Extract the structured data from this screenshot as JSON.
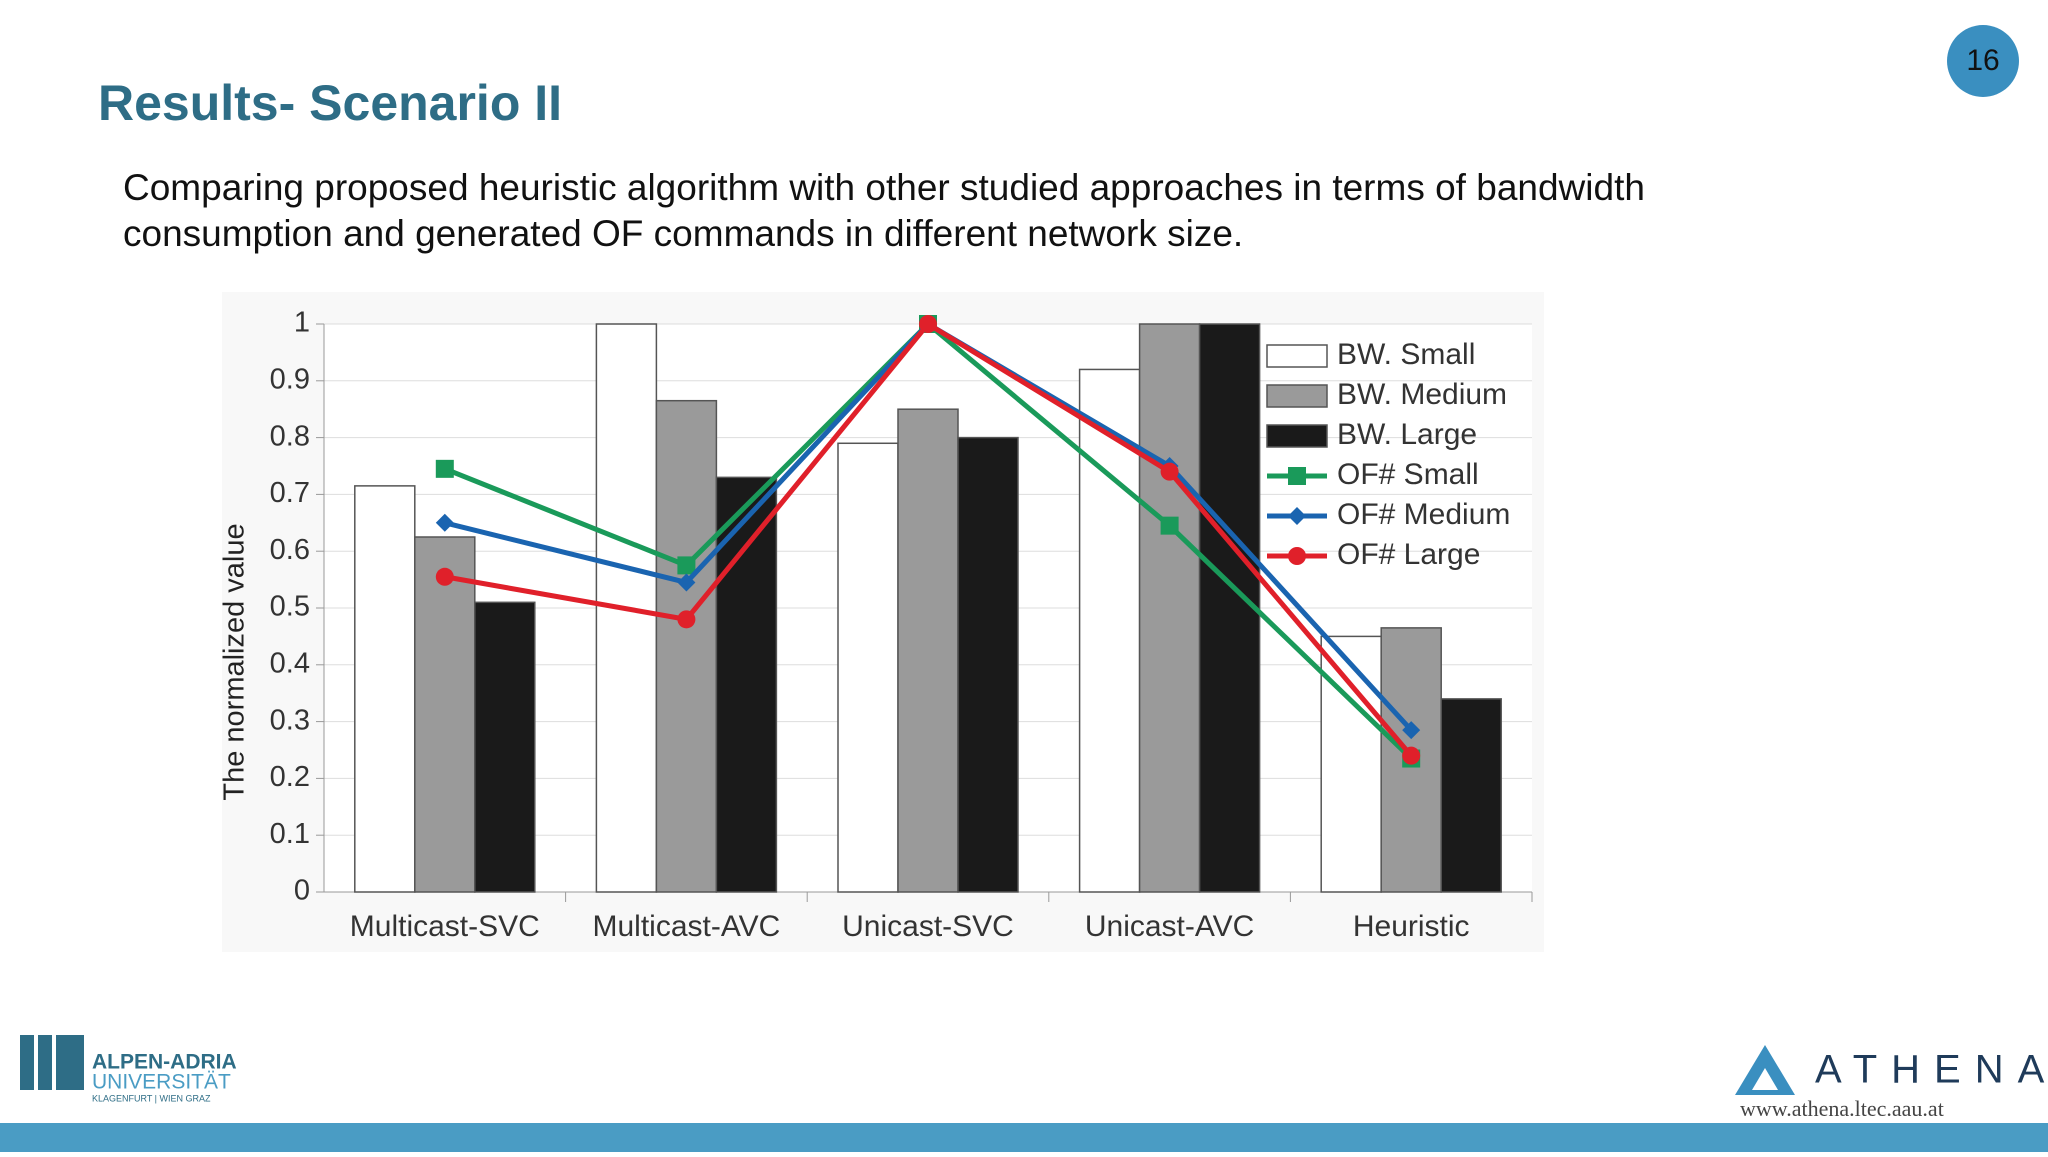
{
  "slide": {
    "title": "Results- Scenario II",
    "text": [
      "Comparing proposed heuristic algorithm with other studied approaches in terms of bandwidth",
      "consumption and generated OF commands in different network size."
    ],
    "page_number": 16,
    "logo_left": [
      "ALPEN-ADRIA",
      "UNIVERSITÄT",
      "KLAGENFURT | WIEN GRAZ"
    ],
    "logo_right": [
      "ATHENA",
      "www.athena.ltec.aau.at"
    ]
  },
  "chart_data": {
    "type": "bar",
    "y_label": "The normalized value",
    "categories": [
      "Multicast-SVC",
      "Multicast-AVC",
      "Unicast-SVC",
      "Unicast-AVC",
      "Heuristic"
    ],
    "series": [
      {
        "name": "BW. Small",
        "type": "bar",
        "color": "#ffffff",
        "values": [
          0.715,
          1.0,
          0.79,
          0.92,
          0.45
        ]
      },
      {
        "name": "BW. Medium",
        "type": "bar",
        "color": "#9a9a9a",
        "values": [
          0.625,
          0.865,
          0.85,
          1.0,
          0.465
        ]
      },
      {
        "name": "BW. Large",
        "type": "bar",
        "color": "#1a1a1a",
        "values": [
          0.51,
          0.73,
          0.8,
          1.0,
          0.34
        ]
      },
      {
        "name": "OF# Small",
        "type": "line",
        "marker": "square",
        "color": "#1a9a5a",
        "values": [
          0.745,
          0.575,
          1.0,
          0.645,
          0.235
        ]
      },
      {
        "name": "OF# Medium",
        "type": "line",
        "marker": "diamond",
        "color": "#1a64b0",
        "values": [
          0.65,
          0.545,
          1.0,
          0.75,
          0.285
        ]
      },
      {
        "name": "OF# Large",
        "type": "line",
        "marker": "circle",
        "color": "#e0202a",
        "values": [
          0.555,
          0.48,
          1.0,
          0.74,
          0.24
        ]
      }
    ],
    "ylim": [
      0,
      1
    ],
    "yticks": [
      0,
      0.1,
      0.2,
      0.3,
      0.4,
      0.5,
      0.6,
      0.7,
      0.8,
      0.9,
      1
    ],
    "grid": true,
    "legend": "upper right"
  }
}
